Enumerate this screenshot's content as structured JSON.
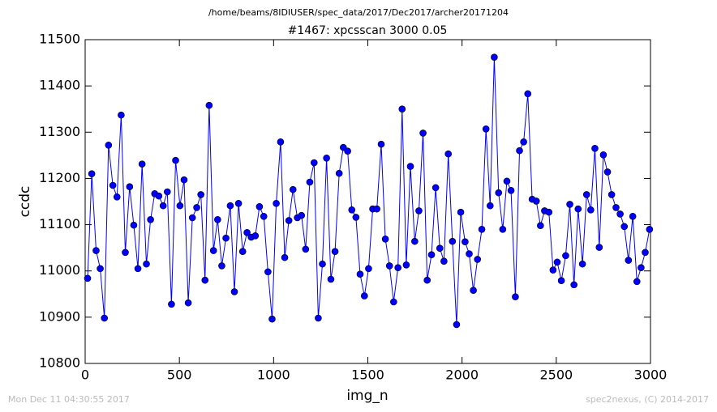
{
  "chart_data": {
    "type": "line",
    "suptitle": "/home/beams/8IDIUSER/spec_data/2017/Dec2017/archer20171204",
    "title": "#1467: xpcsscan 3000 0.05",
    "x_label": "img_n",
    "y_label": "ccdc",
    "footer_left": "Mon Dec 11 04:30:55 2017",
    "footer_right": "spec2nexus, (C) 2014-2017",
    "color": "#0000ff",
    "x": [
      13,
      35,
      58,
      80,
      102,
      124,
      147,
      169,
      191,
      213,
      236,
      258,
      280,
      302,
      325,
      347,
      369,
      391,
      414,
      436,
      458,
      480,
      503,
      525,
      547,
      569,
      592,
      614,
      636,
      658,
      681,
      703,
      725,
      747,
      770,
      792,
      814,
      836,
      859,
      881,
      903,
      925,
      948,
      970,
      992,
      1014,
      1037,
      1059,
      1081,
      1103,
      1126,
      1148,
      1170,
      1192,
      1215,
      1237,
      1259,
      1281,
      1304,
      1326,
      1348,
      1370,
      1393,
      1415,
      1437,
      1459,
      1482,
      1504,
      1526,
      1548,
      1571,
      1593,
      1615,
      1637,
      1660,
      1682,
      1704,
      1726,
      1749,
      1771,
      1793,
      1815,
      1838,
      1860,
      1882,
      1904,
      1927,
      1949,
      1971,
      1993,
      2016,
      2038,
      2060,
      2082,
      2105,
      2127,
      2149,
      2171,
      2194,
      2216,
      2238,
      2260,
      2283,
      2305,
      2327,
      2349,
      2372,
      2394,
      2416,
      2438,
      2461,
      2483,
      2505,
      2527,
      2550,
      2572,
      2594,
      2616,
      2639,
      2661,
      2683,
      2705,
      2728,
      2750,
      2772,
      2794,
      2817,
      2839,
      2861,
      2883,
      2906,
      2928,
      2950,
      2972,
      2995
    ],
    "values": [
      10984,
      11210,
      11044,
      11005,
      10898,
      11272,
      11185,
      11160,
      11337,
      11040,
      11182,
      11099,
      11005,
      11231,
      11015,
      11111,
      11167,
      11162,
      11141,
      11171,
      10928,
      11239,
      11141,
      11197,
      10931,
      11115,
      11137,
      11165,
      10980,
      11358,
      11044,
      11111,
      11011,
      11071,
      11141,
      10955,
      11146,
      11042,
      11083,
      11073,
      11076,
      11139,
      11118,
      10998,
      10896,
      11146,
      11279,
      11029,
      11109,
      11176,
      11115,
      11120,
      11047,
      11192,
      11234,
      10898,
      11015,
      11244,
      10982,
      11042,
      11211,
      11267,
      11259,
      11132,
      11116,
      10993,
      10946,
      11005,
      11134,
      11134,
      11274,
      11069,
      11011,
      10933,
      11007,
      11350,
      11013,
      11226,
      11064,
      11130,
      11298,
      10980,
      11035,
      11180,
      11049,
      11021,
      11253,
      11064,
      10884,
      11127,
      11063,
      11037,
      10958,
      11025,
      11090,
      11307,
      11141,
      11462,
      11169,
      11090,
      11194,
      11174,
      10944,
      11260,
      11279,
      11383,
      11155,
      11151,
      11098,
      11130,
      11127,
      11002,
      11019,
      10979,
      11033,
      11144,
      10970,
      11134,
      11015,
      11165,
      11132,
      11265,
      11051,
      11251,
      11214,
      11165,
      11137,
      11123,
      11096,
      11023,
      11118,
      10977,
      11007,
      11040,
      11090
    ],
    "xlim": [
      0,
      3000
    ],
    "xticks": [
      0,
      500,
      1000,
      1500,
      2000,
      2500,
      3000
    ],
    "ylim": [
      10800,
      11500
    ],
    "yticks": [
      10800,
      10900,
      11000,
      11100,
      11200,
      11300,
      11400,
      11500
    ]
  }
}
